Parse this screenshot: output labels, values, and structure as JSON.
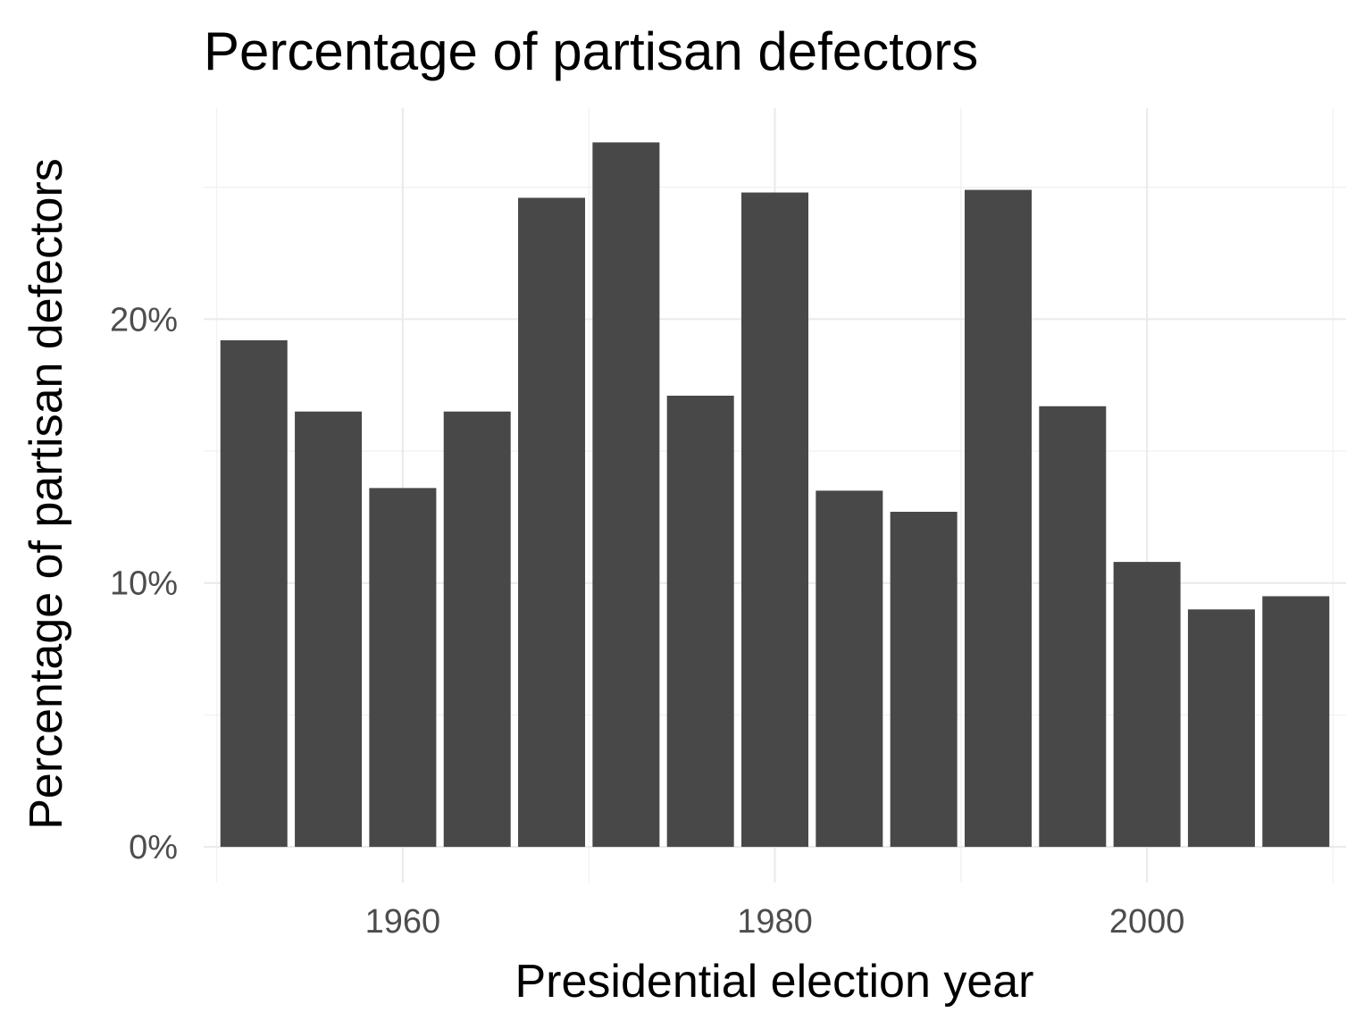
{
  "chart_data": {
    "type": "bar",
    "title": "Percentage of partisan defectors",
    "xlabel": "Presidential election year",
    "ylabel": "Percentage of partisan defectors",
    "x": [
      1952,
      1956,
      1960,
      1964,
      1968,
      1972,
      1976,
      1980,
      1984,
      1988,
      1992,
      1996,
      2000,
      2004,
      2008
    ],
    "values": [
      19.2,
      16.5,
      13.6,
      16.5,
      24.6,
      26.7,
      17.1,
      24.8,
      13.5,
      12.7,
      24.9,
      16.7,
      10.8,
      9.0,
      9.5
    ],
    "xlim": [
      1949.3,
      2010.7
    ],
    "ylim": [
      -1.35,
      28.0
    ],
    "x_ticks": [
      1960,
      1980,
      2000
    ],
    "x_tick_labels": [
      "1960",
      "1980",
      "2000"
    ],
    "y_ticks": [
      0,
      10,
      20
    ],
    "y_tick_labels": [
      "0%",
      "10%",
      "20%"
    ],
    "bar_color": "#484848",
    "grid": true,
    "legend": "none"
  }
}
